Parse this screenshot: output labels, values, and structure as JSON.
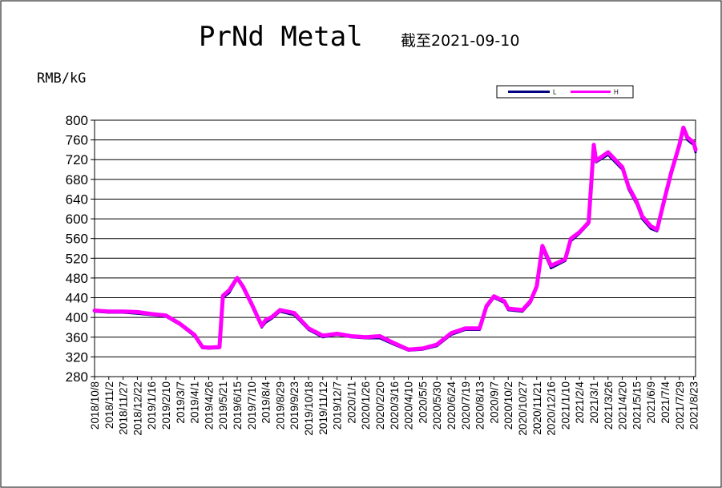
{
  "chart_data": {
    "type": "line",
    "title": "PrNd Metal",
    "subtitle": "截至2021-09-10",
    "ylabel": "RMB/kG",
    "xlabel": "",
    "ylim": [
      280,
      800
    ],
    "yticks": [
      280,
      320,
      360,
      400,
      440,
      480,
      520,
      560,
      600,
      640,
      680,
      720,
      760,
      800
    ],
    "grid": true,
    "legend_position": "top-right",
    "x_tick_labels": [
      "2018/10/8",
      "2018/11/2",
      "2018/11/27",
      "2018/12/22",
      "2019/1/16",
      "2019/2/10",
      "2019/3/7",
      "2019/4/1",
      "2019/4/26",
      "2019/5/21",
      "2019/6/15",
      "2019/7/10",
      "2019/8/4",
      "2019/8/29",
      "2019/9/23",
      "2019/10/18",
      "2019/11/12",
      "2019/12/7",
      "2020/1/1",
      "2020/1/26",
      "2020/2/20",
      "2020/3/16",
      "2020/4/10",
      "2020/5/5",
      "2020/5/30",
      "2020/6/24",
      "2020/7/19",
      "2020/8/13",
      "2020/9/7",
      "2020/10/2",
      "2020/10/27",
      "2020/11/21",
      "2020/12/16",
      "2021/1/10",
      "2021/2/4",
      "2021/3/1",
      "2021/3/26",
      "2021/4/20",
      "2021/5/15",
      "2021/6/9",
      "2021/7/4",
      "2021/7/29",
      "2021/8/23"
    ],
    "series": [
      {
        "name": "L",
        "color": "#000080",
        "x": [
          "2018/10/8",
          "2018/11/2",
          "2018/11/27",
          "2018/12/22",
          "2019/1/16",
          "2019/2/10",
          "2019/3/7",
          "2019/4/1",
          "2019/4/15",
          "2019/4/26",
          "2019/5/15",
          "2019/5/21",
          "2019/6/1",
          "2019/6/15",
          "2019/6/25",
          "2019/7/10",
          "2019/7/28",
          "2019/8/4",
          "2019/8/15",
          "2019/8/29",
          "2019/9/23",
          "2019/10/18",
          "2019/11/12",
          "2019/12/7",
          "2020/1/1",
          "2020/1/26",
          "2020/2/20",
          "2020/3/16",
          "2020/4/10",
          "2020/5/5",
          "2020/5/30",
          "2020/6/24",
          "2020/7/19",
          "2020/8/13",
          "2020/8/25",
          "2020/9/7",
          "2020/9/25",
          "2020/10/2",
          "2020/10/27",
          "2020/11/10",
          "2020/11/21",
          "2020/12/1",
          "2020/12/16",
          "2021/1/10",
          "2021/1/20",
          "2021/2/4",
          "2021/2/20",
          "2021/3/1",
          "2021/3/5",
          "2021/3/26",
          "2021/4/20",
          "2021/5/1",
          "2021/5/15",
          "2021/5/25",
          "2021/6/9",
          "2021/6/20",
          "2021/7/4",
          "2021/7/15",
          "2021/7/29",
          "2021/8/5",
          "2021/8/12",
          "2021/8/23",
          "2021/9/10"
        ],
        "values": [
          412,
          410,
          410,
          408,
          405,
          402,
          385,
          362,
          338,
          337,
          338,
          440,
          450,
          478,
          460,
          425,
          380,
          390,
          398,
          412,
          405,
          375,
          360,
          365,
          360,
          358,
          358,
          345,
          333,
          335,
          342,
          365,
          375,
          375,
          420,
          440,
          430,
          415,
          412,
          430,
          460,
          540,
          500,
          515,
          555,
          570,
          590,
          745,
          715,
          730,
          700,
          660,
          630,
          600,
          580,
          575,
          640,
          690,
          745,
          780,
          760,
          750,
          735
        ]
      },
      {
        "name": "H",
        "color": "#ff00ff",
        "x": [
          "2018/10/8",
          "2018/11/2",
          "2018/11/27",
          "2018/12/22",
          "2019/1/16",
          "2019/2/10",
          "2019/3/7",
          "2019/4/1",
          "2019/4/15",
          "2019/4/26",
          "2019/5/15",
          "2019/5/21",
          "2019/6/1",
          "2019/6/15",
          "2019/6/25",
          "2019/7/10",
          "2019/7/28",
          "2019/8/4",
          "2019/8/15",
          "2019/8/29",
          "2019/9/23",
          "2019/10/18",
          "2019/11/12",
          "2019/12/7",
          "2020/1/1",
          "2020/1/26",
          "2020/2/20",
          "2020/3/16",
          "2020/4/10",
          "2020/5/5",
          "2020/5/30",
          "2020/6/24",
          "2020/7/19",
          "2020/8/13",
          "2020/8/25",
          "2020/9/7",
          "2020/9/25",
          "2020/10/2",
          "2020/10/27",
          "2020/11/10",
          "2020/11/21",
          "2020/12/1",
          "2020/12/16",
          "2021/1/10",
          "2021/1/20",
          "2021/2/4",
          "2021/2/20",
          "2021/3/1",
          "2021/3/5",
          "2021/3/26",
          "2021/4/20",
          "2021/5/1",
          "2021/5/15",
          "2021/5/25",
          "2021/6/9",
          "2021/6/20",
          "2021/7/4",
          "2021/7/15",
          "2021/7/29",
          "2021/8/5",
          "2021/8/12",
          "2021/8/23",
          "2021/9/10"
        ],
        "values": [
          414,
          412,
          412,
          411,
          407,
          404,
          387,
          365,
          340,
          339,
          340,
          444,
          455,
          480,
          463,
          428,
          383,
          395,
          401,
          415,
          409,
          378,
          363,
          367,
          362,
          360,
          362,
          348,
          335,
          337,
          345,
          368,
          378,
          378,
          423,
          443,
          433,
          418,
          415,
          433,
          463,
          545,
          505,
          518,
          560,
          573,
          593,
          750,
          718,
          735,
          705,
          665,
          635,
          605,
          585,
          578,
          645,
          695,
          750,
          785,
          765,
          755,
          740
        ]
      }
    ]
  }
}
